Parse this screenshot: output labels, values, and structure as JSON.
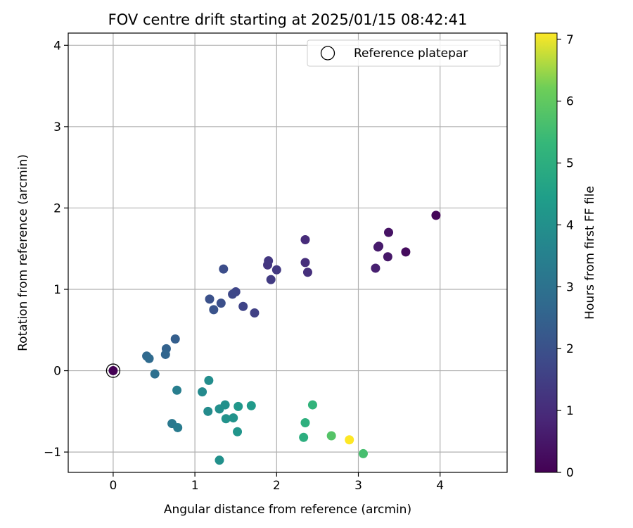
{
  "chart_data": {
    "type": "scatter",
    "title": "FOV centre drift starting at 2025/01/15 08:42:41",
    "xlabel": "Angular distance from reference (arcmin)",
    "ylabel": "Rotation from reference (arcmin)",
    "xlim": [
      -0.55,
      4.82
    ],
    "ylim": [
      -1.25,
      4.15
    ],
    "x_ticks": [
      0,
      1,
      2,
      3,
      4
    ],
    "y_ticks": [
      -1,
      0,
      1,
      2,
      3,
      4
    ],
    "grid": true,
    "legend": {
      "position": "top-right",
      "label": "Reference platepar"
    },
    "colorbar": {
      "label": "Hours from first FF file",
      "colormap": "viridis",
      "min": 0,
      "max": 7.1,
      "ticks": [
        0,
        1,
        2,
        3,
        4,
        5,
        6,
        7
      ]
    },
    "reference_point": {
      "x": 0,
      "y": 0
    },
    "points": [
      {
        "x": 0.0,
        "y": 0.0,
        "hours": 0.0
      },
      {
        "x": 3.95,
        "y": 1.91,
        "hours": 0.1
      },
      {
        "x": 3.58,
        "y": 1.46,
        "hours": 0.25
      },
      {
        "x": 3.37,
        "y": 1.7,
        "hours": 0.4
      },
      {
        "x": 3.36,
        "y": 1.4,
        "hours": 0.5
      },
      {
        "x": 3.25,
        "y": 1.53,
        "hours": 0.55
      },
      {
        "x": 3.24,
        "y": 1.52,
        "hours": 0.6
      },
      {
        "x": 3.21,
        "y": 1.26,
        "hours": 0.7
      },
      {
        "x": 2.35,
        "y": 1.61,
        "hours": 1.0
      },
      {
        "x": 2.35,
        "y": 1.33,
        "hours": 1.05
      },
      {
        "x": 2.38,
        "y": 1.21,
        "hours": 1.1
      },
      {
        "x": 1.89,
        "y": 1.3,
        "hours": 1.25
      },
      {
        "x": 1.9,
        "y": 1.35,
        "hours": 1.3
      },
      {
        "x": 2.0,
        "y": 1.24,
        "hours": 1.35
      },
      {
        "x": 1.93,
        "y": 1.12,
        "hours": 1.4
      },
      {
        "x": 1.73,
        "y": 0.71,
        "hours": 1.55
      },
      {
        "x": 1.59,
        "y": 0.79,
        "hours": 1.65
      },
      {
        "x": 1.5,
        "y": 0.97,
        "hours": 1.7
      },
      {
        "x": 1.46,
        "y": 0.94,
        "hours": 1.75
      },
      {
        "x": 1.35,
        "y": 1.25,
        "hours": 1.9
      },
      {
        "x": 1.32,
        "y": 0.83,
        "hours": 1.95
      },
      {
        "x": 1.18,
        "y": 0.88,
        "hours": 2.0
      },
      {
        "x": 1.23,
        "y": 0.75,
        "hours": 2.05
      },
      {
        "x": 0.76,
        "y": 0.39,
        "hours": 2.4
      },
      {
        "x": 0.65,
        "y": 0.27,
        "hours": 2.5
      },
      {
        "x": 0.64,
        "y": 0.2,
        "hours": 2.6
      },
      {
        "x": 0.41,
        "y": 0.18,
        "hours": 2.7
      },
      {
        "x": 0.44,
        "y": 0.15,
        "hours": 2.75
      },
      {
        "x": 0.51,
        "y": -0.04,
        "hours": 2.95
      },
      {
        "x": 0.78,
        "y": -0.24,
        "hours": 3.4
      },
      {
        "x": 0.72,
        "y": -0.65,
        "hours": 3.2
      },
      {
        "x": 0.79,
        "y": -0.7,
        "hours": 3.3
      },
      {
        "x": 1.09,
        "y": -0.26,
        "hours": 3.8
      },
      {
        "x": 1.17,
        "y": -0.12,
        "hours": 3.9
      },
      {
        "x": 1.16,
        "y": -0.5,
        "hours": 3.85
      },
      {
        "x": 1.3,
        "y": -0.47,
        "hours": 3.95
      },
      {
        "x": 1.37,
        "y": -0.42,
        "hours": 4.0
      },
      {
        "x": 1.38,
        "y": -0.59,
        "hours": 4.05
      },
      {
        "x": 1.47,
        "y": -0.58,
        "hours": 4.1
      },
      {
        "x": 1.53,
        "y": -0.44,
        "hours": 4.2
      },
      {
        "x": 1.69,
        "y": -0.43,
        "hours": 4.3
      },
      {
        "x": 1.52,
        "y": -0.75,
        "hours": 4.15
      },
      {
        "x": 1.3,
        "y": -1.1,
        "hours": 4.0
      },
      {
        "x": 2.33,
        "y": -0.82,
        "hours": 5.0
      },
      {
        "x": 2.35,
        "y": -0.64,
        "hours": 5.05
      },
      {
        "x": 2.44,
        "y": -0.42,
        "hours": 5.2
      },
      {
        "x": 2.67,
        "y": -0.8,
        "hours": 5.8
      },
      {
        "x": 2.89,
        "y": -0.85,
        "hours": 7.1
      },
      {
        "x": 3.06,
        "y": -1.02,
        "hours": 5.6
      }
    ]
  }
}
